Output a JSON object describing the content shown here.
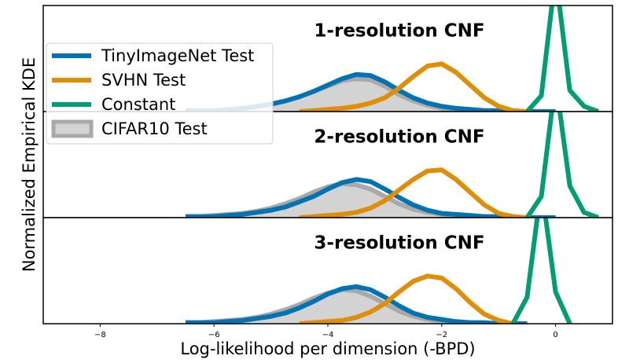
{
  "chart_data": [
    {
      "type": "line",
      "title": "1-resolution CNF",
      "legend": "upper left",
      "xlim": [
        -9,
        1
      ],
      "ylim": [
        0,
        1
      ],
      "x": [
        -6.5,
        -6.25,
        -6,
        -5.75,
        -5.5,
        -5.25,
        -5,
        -4.75,
        -4.5,
        -4.25,
        -4,
        -3.75,
        -3.5,
        -3.25,
        -3,
        -2.75,
        -2.5,
        -2.25,
        -2,
        -1.75,
        -1.5,
        -1.25,
        -1,
        -0.75,
        -0.5,
        -0.25,
        0,
        0.25,
        0.5,
        0.75
      ],
      "series": [
        {
          "name": "CIFAR10 Test",
          "style": "area",
          "color": "#a9a9a9",
          "fill": "#d3d3d3",
          "values": [
            0.01,
            0.01,
            0.01,
            0.02,
            0.03,
            0.05,
            0.07,
            0.1,
            0.14,
            0.19,
            0.24,
            0.29,
            0.31,
            0.3,
            0.24,
            0.16,
            0.1,
            0.06,
            0.03,
            0.02,
            0.01,
            0.01,
            0,
            0,
            null,
            null,
            null,
            null,
            null,
            null
          ]
        },
        {
          "name": "TinyImageNet Test",
          "style": "line",
          "color": "#0173b2",
          "values": [
            0.01,
            0.01,
            0.01,
            0.02,
            0.03,
            0.05,
            0.07,
            0.1,
            0.14,
            0.19,
            0.25,
            0.31,
            0.35,
            0.34,
            0.28,
            0.2,
            0.13,
            0.08,
            0.05,
            0.03,
            0.02,
            0.01,
            0.01,
            0,
            0,
            0,
            0,
            null,
            null,
            null
          ]
        },
        {
          "name": "SVHN Test",
          "style": "line",
          "color": "#de8f05",
          "values": [
            null,
            null,
            null,
            null,
            null,
            null,
            null,
            null,
            0,
            0.01,
            0.02,
            0.03,
            0.05,
            0.08,
            0.13,
            0.22,
            0.33,
            0.43,
            0.45,
            0.37,
            0.25,
            0.13,
            0.05,
            0.01,
            0,
            null,
            null,
            null,
            null,
            null
          ]
        },
        {
          "name": "Constant",
          "style": "line",
          "color": "#029e73",
          "values": [
            null,
            null,
            null,
            null,
            null,
            null,
            null,
            null,
            null,
            null,
            null,
            null,
            null,
            null,
            null,
            null,
            null,
            null,
            null,
            null,
            null,
            null,
            null,
            null,
            0,
            0.15,
            1.3,
            0.2,
            0.05,
            0
          ]
        }
      ]
    },
    {
      "type": "line",
      "title": "2-resolution CNF",
      "ylabel": "Normalized Empirical KDE",
      "xlim": [
        -9,
        1
      ],
      "ylim": [
        0,
        1
      ],
      "x": [
        -6.5,
        -6.25,
        -6,
        -5.75,
        -5.5,
        -5.25,
        -5,
        -4.75,
        -4.5,
        -4.25,
        -4,
        -3.75,
        -3.5,
        -3.25,
        -3,
        -2.75,
        -2.5,
        -2.25,
        -2,
        -1.75,
        -1.5,
        -1.25,
        -1,
        -0.75,
        -0.5,
        -0.25,
        0,
        0.25,
        0.5,
        0.75
      ],
      "series": [
        {
          "style": "area",
          "color": "#a9a9a9",
          "fill": "#d3d3d3",
          "values": [
            0.01,
            0.01,
            0.02,
            0.03,
            0.04,
            0.06,
            0.09,
            0.13,
            0.18,
            0.24,
            0.29,
            0.32,
            0.31,
            0.27,
            0.2,
            0.13,
            0.08,
            0.05,
            0.03,
            0.02,
            0.01,
            0.01,
            0,
            0,
            null,
            null,
            null,
            null,
            null,
            null
          ]
        },
        {
          "style": "line",
          "color": "#0173b2",
          "values": [
            0.01,
            0.01,
            0.01,
            0.02,
            0.03,
            0.05,
            0.07,
            0.1,
            0.15,
            0.2,
            0.27,
            0.33,
            0.36,
            0.34,
            0.27,
            0.19,
            0.12,
            0.07,
            0.04,
            0.03,
            0.02,
            0.01,
            0.01,
            0,
            0,
            0,
            0,
            null,
            null,
            null
          ]
        },
        {
          "style": "line",
          "color": "#de8f05",
          "values": [
            null,
            null,
            null,
            null,
            null,
            null,
            null,
            null,
            0,
            0.01,
            0.02,
            0.03,
            0.05,
            0.09,
            0.16,
            0.26,
            0.36,
            0.44,
            0.45,
            0.36,
            0.24,
            0.12,
            0.04,
            0.01,
            0,
            null,
            null,
            null,
            null,
            null
          ]
        },
        {
          "style": "line",
          "color": "#029e73",
          "values": [
            null,
            null,
            null,
            null,
            null,
            null,
            null,
            null,
            null,
            null,
            null,
            null,
            null,
            null,
            null,
            null,
            null,
            null,
            null,
            null,
            null,
            null,
            null,
            null,
            0,
            0.2,
            1.3,
            0.3,
            0.05,
            0
          ]
        }
      ]
    },
    {
      "type": "line",
      "title": "3-resolution CNF",
      "xlabel": "Log-likelihood per dimension (-BPD)",
      "xlim": [
        -9,
        1
      ],
      "ylim": [
        0,
        1
      ],
      "xticks": [
        {
          "value": -8,
          "label": "−8"
        },
        {
          "value": -6,
          "label": "−6"
        },
        {
          "value": -4,
          "label": "−4"
        },
        {
          "value": -2,
          "label": "−2"
        },
        0
      ],
      "x": [
        -6.5,
        -6.25,
        -6,
        -5.75,
        -5.5,
        -5.25,
        -5,
        -4.75,
        -4.5,
        -4.25,
        -4,
        -3.75,
        -3.5,
        -3.25,
        -3,
        -2.75,
        -2.5,
        -2.25,
        -2,
        -1.75,
        -1.5,
        -1.25,
        -1,
        -0.75,
        -0.5,
        -0.25,
        0,
        0.25,
        0.5,
        0.75
      ],
      "series": [
        {
          "style": "area",
          "color": "#a9a9a9",
          "fill": "#d3d3d3",
          "values": [
            0.01,
            0.01,
            0.02,
            0.03,
            0.04,
            0.06,
            0.09,
            0.13,
            0.18,
            0.24,
            0.29,
            0.32,
            0.31,
            0.26,
            0.19,
            0.12,
            0.07,
            0.04,
            0.02,
            0.01,
            0.01,
            0,
            0,
            null,
            null,
            null,
            null,
            null,
            null,
            null
          ]
        },
        {
          "style": "line",
          "color": "#0173b2",
          "values": [
            0.01,
            0.01,
            0.01,
            0.02,
            0.03,
            0.05,
            0.07,
            0.1,
            0.15,
            0.21,
            0.28,
            0.33,
            0.35,
            0.32,
            0.25,
            0.17,
            0.1,
            0.06,
            0.04,
            0.02,
            0.01,
            0.01,
            0,
            0,
            0,
            null,
            null,
            null,
            null,
            null
          ]
        },
        {
          "style": "line",
          "color": "#de8f05",
          "values": [
            null,
            null,
            null,
            null,
            null,
            null,
            null,
            null,
            0,
            0.01,
            0.02,
            0.03,
            0.06,
            0.11,
            0.19,
            0.3,
            0.4,
            0.45,
            0.43,
            0.33,
            0.2,
            0.09,
            0.03,
            0,
            null,
            null,
            null,
            null,
            null,
            null
          ]
        },
        {
          "style": "line",
          "color": "#029e73",
          "values": [
            null,
            null,
            null,
            null,
            null,
            null,
            null,
            null,
            null,
            null,
            null,
            null,
            null,
            null,
            null,
            null,
            null,
            null,
            null,
            null,
            null,
            null,
            null,
            0,
            0.25,
            1.3,
            0.3,
            0,
            null,
            null
          ]
        }
      ]
    }
  ]
}
